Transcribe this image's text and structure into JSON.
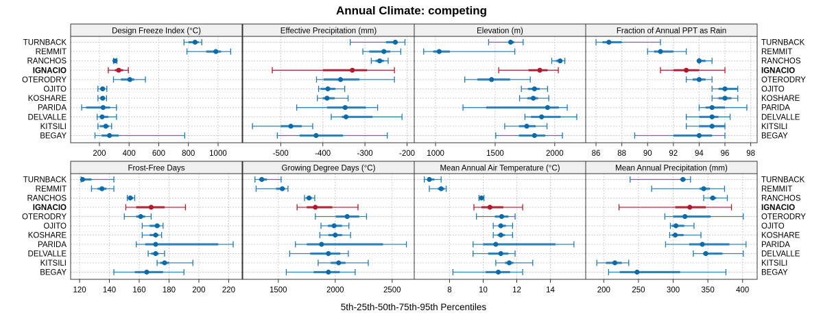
{
  "chart_data": {
    "type": "dotplot",
    "title": "Annual Climate: competing",
    "xlabel": "5th-25th-50th-75th-95th Percentiles",
    "ylabel": "",
    "legend": "none",
    "grid": true,
    "highlight_site": "IGNACIO",
    "colors": {
      "normal": "#1f78b4",
      "normal_dark": "#0b6aa8",
      "highlight": "#b2182b"
    },
    "sites": [
      "TURNBACK",
      "REMMIT",
      "RANCHOS",
      "IGNACIO",
      "OTERODRY",
      "OJITO",
      "KOSHARE",
      "PARIDA",
      "DELVALLE",
      "KITSILI",
      "BEGAY"
    ],
    "panels": [
      {
        "title": "Design Freeze Index (°C)",
        "xlim": [
          6,
          1162
        ],
        "ticks": [
          200,
          400,
          600,
          800,
          1000
        ],
        "tick_side": "bottom",
        "values": [
          [
            770,
            800,
            845,
            870,
            890
          ],
          [
            790,
            920,
            985,
            1020,
            1085
          ],
          [
            295,
            300,
            305,
            312,
            318
          ],
          [
            260,
            305,
            330,
            360,
            395
          ],
          [
            295,
            345,
            405,
            435,
            510
          ],
          [
            190,
            205,
            222,
            235,
            250
          ],
          [
            190,
            205,
            222,
            235,
            248
          ],
          [
            80,
            110,
            225,
            272,
            315
          ],
          [
            185,
            205,
            218,
            260,
            315
          ],
          [
            190,
            205,
            243,
            265,
            282
          ],
          [
            170,
            215,
            268,
            330,
            775
          ]
        ]
      },
      {
        "title": "Effective Precipitation (mm)",
        "xlim": [
          -590,
          -183
        ],
        "ticks": [
          -500,
          -400,
          -300,
          -200
        ],
        "tick_side": "bottom",
        "values": [
          [
            -335,
            -250,
            -228,
            -222,
            -205
          ],
          [
            -305,
            -290,
            -255,
            -240,
            -215
          ],
          [
            -285,
            -275,
            -265,
            -255,
            -245
          ],
          [
            -520,
            -400,
            -330,
            -295,
            -230
          ],
          [
            -415,
            -398,
            -358,
            -313,
            -230
          ],
          [
            -410,
            -405,
            -388,
            -370,
            -348
          ],
          [
            -413,
            -400,
            -390,
            -372,
            -340
          ],
          [
            -462,
            -390,
            -347,
            -298,
            -270
          ],
          [
            -380,
            -355,
            -345,
            -282,
            -212
          ],
          [
            -567,
            -500,
            -476,
            -450,
            -424
          ],
          [
            -508,
            -455,
            -416,
            -352,
            -247
          ]
        ]
      },
      {
        "title": "Elevation (m)",
        "xlim": [
          821,
          2260
        ],
        "ticks": [
          1000,
          1500,
          2000
        ],
        "tick_side": "bottom",
        "values": [
          [
            1445,
            1615,
            1630,
            1660,
            1735
          ],
          [
            900,
            980,
            1030,
            1120,
            1665
          ],
          [
            1975,
            2010,
            2045,
            2060,
            2085
          ],
          [
            1530,
            1780,
            1875,
            1940,
            2030
          ],
          [
            1245,
            1350,
            1470,
            1625,
            1795
          ],
          [
            1720,
            1775,
            1830,
            1875,
            1940
          ],
          [
            1705,
            1770,
            1820,
            1860,
            1950
          ],
          [
            1230,
            1425,
            1940,
            2035,
            2105
          ],
          [
            1750,
            1800,
            1890,
            2050,
            2185
          ],
          [
            1580,
            1700,
            1765,
            1840,
            1935
          ],
          [
            1505,
            1700,
            1830,
            1920,
            2065
          ]
        ]
      },
      {
        "title": "Fraction of Annual PPT as Rain",
        "xlim": [
          85.2,
          98.5
        ],
        "ticks": [
          86,
          88,
          90,
          92,
          94,
          96,
          98
        ],
        "tick_side": "bottom",
        "values": [
          [
            86,
            86.5,
            87,
            88,
            91
          ],
          [
            90,
            90.5,
            91,
            92,
            93
          ],
          [
            94,
            94,
            94,
            94.5,
            95
          ],
          [
            91,
            92,
            93,
            94,
            96
          ],
          [
            93,
            93.5,
            94,
            94.5,
            95
          ],
          [
            95,
            95.5,
            96,
            97,
            97
          ],
          [
            95,
            95.5,
            96,
            96.5,
            97
          ],
          [
            94,
            94.5,
            95,
            96,
            97.7
          ],
          [
            93,
            94,
            95,
            95.5,
            96.4
          ],
          [
            93,
            94,
            95,
            96,
            96
          ],
          [
            89,
            92,
            94,
            95,
            96
          ]
        ]
      },
      {
        "title": "Frost-Free Days",
        "xlim": [
          114,
          229
        ],
        "ticks": [
          120,
          140,
          160,
          180,
          200,
          220
        ],
        "tick_side": "bottom",
        "values": [
          [
            121,
            122,
            122,
            128,
            143
          ],
          [
            128,
            132,
            135,
            138,
            143
          ],
          [
            152,
            153,
            154,
            156,
            157
          ],
          [
            151,
            158,
            168,
            177,
            191
          ],
          [
            150,
            158,
            161,
            164,
            168
          ],
          [
            162,
            167,
            172,
            174,
            176
          ],
          [
            162,
            167,
            171,
            173,
            175
          ],
          [
            158,
            164,
            171,
            213,
            223
          ],
          [
            166,
            168,
            171,
            173,
            177
          ],
          [
            172,
            174,
            177,
            180,
            196
          ],
          [
            143,
            157,
            165,
            176,
            190
          ]
        ]
      },
      {
        "title": "Growing Degree Days (°C)",
        "xlim": [
          1188,
          2694
        ],
        "ticks": [
          1500,
          2000,
          2500
        ],
        "tick_side": "bottom",
        "values": [
          [
            1295,
            1330,
            1355,
            1400,
            1525
          ],
          [
            1305,
            1480,
            1535,
            1560,
            1585
          ],
          [
            1730,
            1745,
            1770,
            1795,
            1820
          ],
          [
            1665,
            1750,
            1825,
            1975,
            2200
          ],
          [
            1825,
            2005,
            2105,
            2210,
            2275
          ],
          [
            1875,
            1935,
            1990,
            2060,
            2120
          ],
          [
            1865,
            1940,
            2000,
            2060,
            2135
          ],
          [
            1650,
            1750,
            1880,
            2420,
            2625
          ],
          [
            1600,
            1780,
            1940,
            2045,
            2115
          ],
          [
            1850,
            1960,
            2030,
            2090,
            2290
          ],
          [
            1570,
            1810,
            1940,
            2040,
            2175
          ]
        ]
      },
      {
        "title": "Mean Annual Air Temperature (°C)",
        "xlim": [
          5.9,
          16.1
        ],
        "ticks": [
          8,
          10,
          12,
          14
        ],
        "tick_side": "bottom",
        "values": [
          [
            6.5,
            6.7,
            6.8,
            7.1,
            7.5
          ],
          [
            6.8,
            7.3,
            7.5,
            7.7,
            7.8
          ],
          [
            9.75,
            9.8,
            9.9,
            9.95,
            10.05
          ],
          [
            9.45,
            9.9,
            10.4,
            11.2,
            12.35
          ],
          [
            9.6,
            10.7,
            11.1,
            11.5,
            11.9
          ],
          [
            10.6,
            10.9,
            11.05,
            11.35,
            11.75
          ],
          [
            10.6,
            10.85,
            11.05,
            11.3,
            11.75
          ],
          [
            9.4,
            10.0,
            10.75,
            14.3,
            15.4
          ],
          [
            9.4,
            10.3,
            11.05,
            11.5,
            11.9
          ],
          [
            10.75,
            11.3,
            11.55,
            11.8,
            12.95
          ],
          [
            8.2,
            10.15,
            10.9,
            11.6,
            12.35
          ]
        ]
      },
      {
        "title": "Mean Annual Precipitation (mm)",
        "xlim": [
          174,
          421
        ],
        "ticks": [
          200,
          250,
          300,
          350,
          400
        ],
        "tick_side": "bottom",
        "values": [
          [
            238,
            310,
            314,
            318,
            325
          ],
          [
            269,
            338,
            344,
            353,
            374
          ],
          [
            344,
            353,
            357,
            362,
            378
          ],
          [
            222,
            303,
            324,
            347,
            384
          ],
          [
            288,
            300,
            317,
            354,
            401
          ],
          [
            296,
            298,
            304,
            316,
            330
          ],
          [
            295,
            298,
            303,
            315,
            340
          ],
          [
            289,
            323,
            342,
            381,
            405
          ],
          [
            329,
            343,
            347,
            371,
            401
          ],
          [
            190,
            203,
            216,
            226,
            236
          ],
          [
            207,
            223,
            248,
            310,
            376
          ]
        ]
      }
    ]
  }
}
